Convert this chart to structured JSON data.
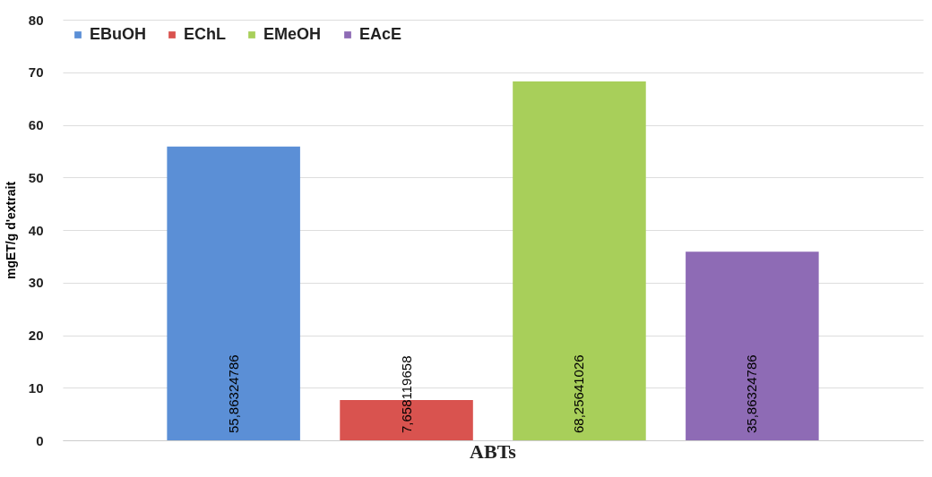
{
  "chart_data": {
    "type": "bar",
    "categories": [
      "ABTs"
    ],
    "ylabel": "mgET/g d'extrait",
    "ylim": [
      0,
      80
    ],
    "yticks": [
      0,
      10,
      20,
      30,
      40,
      50,
      60,
      70,
      80
    ],
    "grid": "y",
    "legend": "top left",
    "series": [
      {
        "name": "EBuOH",
        "color": "#5b8fd6",
        "values": [
          55.86324786
        ],
        "value_labels": [
          "55,86324786"
        ]
      },
      {
        "name": "EChL",
        "color": "#d9534f",
        "values": [
          7.658119658
        ],
        "value_labels": [
          "7,658119658"
        ]
      },
      {
        "name": "EMeOH",
        "color": "#a8cf5a",
        "values": [
          68.25641026
        ],
        "value_labels": [
          "68,25641026"
        ]
      },
      {
        "name": "EAcE",
        "color": "#8e6bb5",
        "values": [
          35.86324786
        ],
        "value_labels": [
          "35,86324786"
        ]
      }
    ]
  }
}
